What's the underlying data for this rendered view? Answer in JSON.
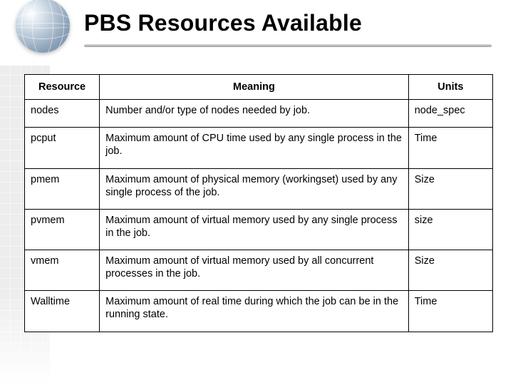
{
  "title": "PBS Resources Available",
  "table": {
    "columns": [
      "Resource",
      "Meaning",
      "Units"
    ],
    "rows": [
      {
        "resource": "nodes",
        "meaning": "Number and/or type of nodes needed by job.",
        "units": "node_spec"
      },
      {
        "resource": "pcput",
        "meaning": "Maximum amount of CPU time used by any single process in the job.",
        "units": "Time"
      },
      {
        "resource": "pmem",
        "meaning": "Maximum amount of physical memory (workingset) used by any single process of the job.",
        "units": "Size"
      },
      {
        "resource": "pvmem",
        "meaning": "Maximum amount of virtual memory used by any single process in the job.",
        "units": "size"
      },
      {
        "resource": "vmem",
        "meaning": "Maximum amount of virtual memory used by all concurrent processes in the job.",
        "units": "Size"
      },
      {
        "resource": "Walltime",
        "meaning": "Maximum amount of real time during which the job can be in the running state.",
        "units": "Time"
      }
    ],
    "column_widths_pct": [
      16,
      66,
      18
    ],
    "border_color": "#000000",
    "background_color": "#ffffff",
    "header_fontsize_pt": 11,
    "body_fontsize_pt": 11,
    "header_align": [
      "center",
      "center",
      "center"
    ],
    "body_align": [
      "left",
      "left",
      "left"
    ]
  },
  "style": {
    "title_color": "#000000",
    "title_fontsize_pt": 24,
    "title_fontweight": 700,
    "rule_gradient": [
      "#d7d7d7",
      "#9e9e9e"
    ],
    "page_background": "#ffffff",
    "globe_gradient": [
      "#ffffff",
      "#dfe8ef",
      "#b8c7d6",
      "#8aa0b8",
      "#6d85a0"
    ],
    "leftgrid_color": "#ececec"
  }
}
